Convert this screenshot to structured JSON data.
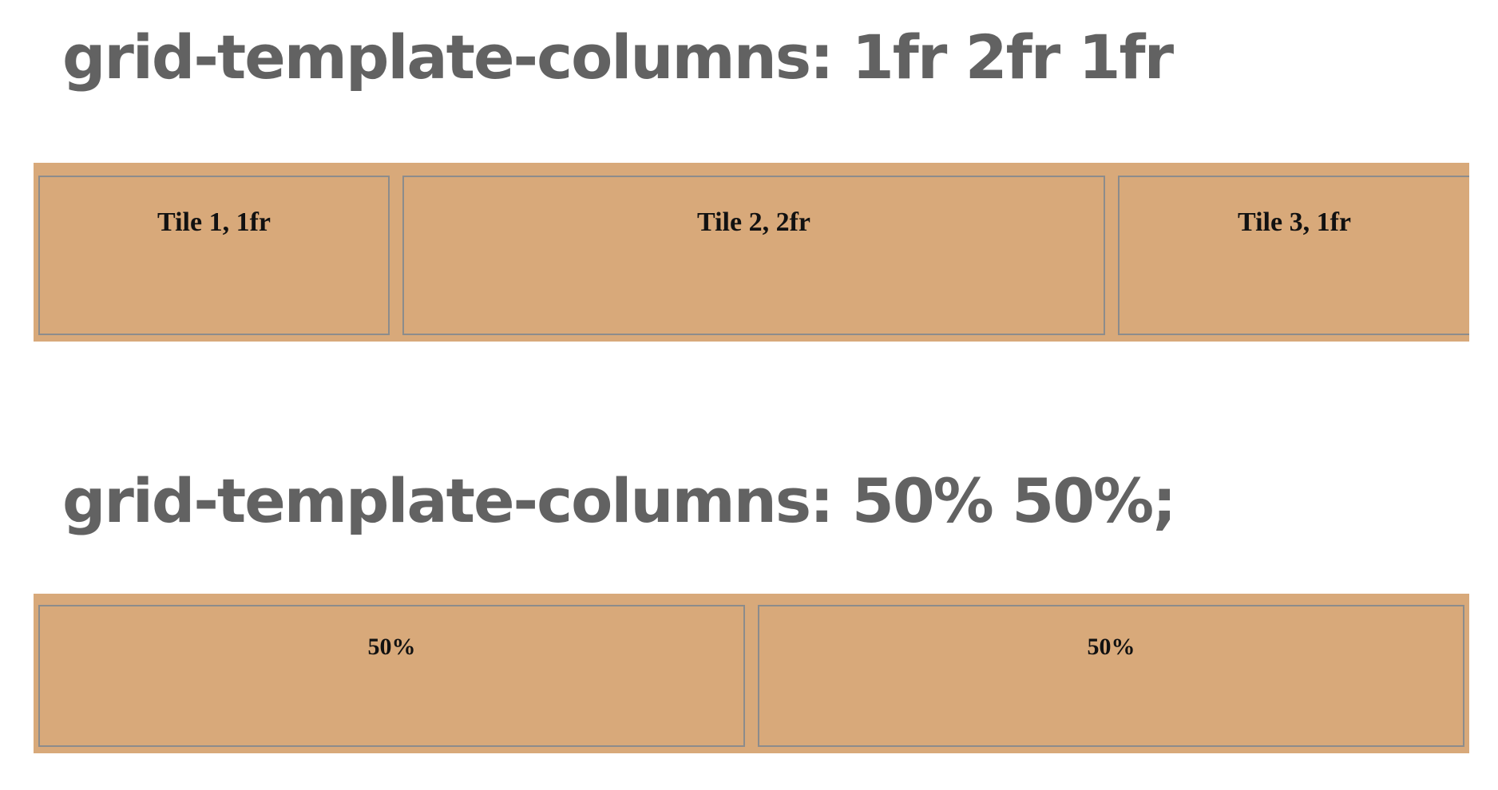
{
  "sections": [
    {
      "heading": "grid-template-columns: 1fr 2fr 1fr",
      "tiles": [
        "Tile 1, 1fr",
        "Tile 2, 2fr",
        "Tile 3, 1fr"
      ]
    },
    {
      "heading": "grid-template-columns: 50% 50%;",
      "tiles": [
        "50%",
        "50%"
      ]
    }
  ],
  "colors": {
    "grid_background": "#d8a97a",
    "tile_border": "#8c8c8c",
    "heading_text": "#626262",
    "tile_text": "#111111"
  }
}
